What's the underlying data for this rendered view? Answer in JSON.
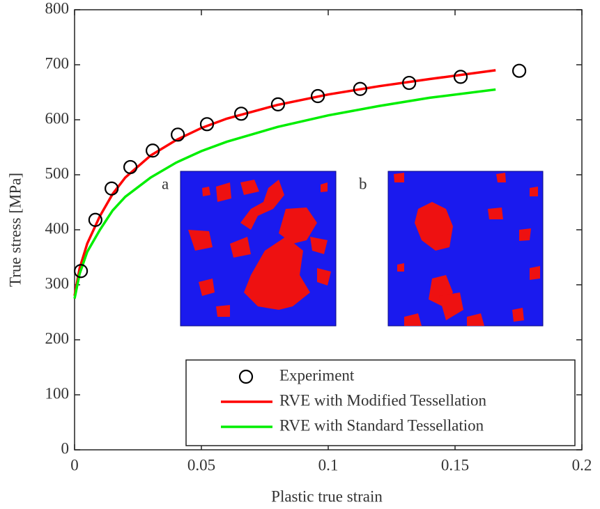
{
  "chart_data": {
    "type": "line",
    "xlabel": "Plastic true strain",
    "ylabel": "True stress [MPa]",
    "xlim": [
      0,
      0.2
    ],
    "xticks": [
      0,
      0.05,
      0.1,
      0.15,
      0.2
    ],
    "ylim": [
      0,
      800
    ],
    "yticks": [
      0,
      100,
      200,
      300,
      400,
      500,
      600,
      700,
      800
    ],
    "legend": "lower right",
    "series": [
      {
        "name": "Experiment",
        "type": "scatter",
        "color": "#000000",
        "x": [
          0.0025,
          0.0082,
          0.0146,
          0.022,
          0.0308,
          0.0407,
          0.0522,
          0.0657,
          0.0802,
          0.0959,
          0.1126,
          0.1319,
          0.1522,
          0.1753
        ],
        "values": [
          325,
          418,
          475,
          514,
          544,
          573,
          592,
          611,
          628,
          643,
          656,
          667,
          678,
          689
        ]
      },
      {
        "name": "RVE with Modified Tessellation",
        "type": "line",
        "color": "#ff0000",
        "x": [
          0,
          0.002,
          0.005,
          0.01,
          0.015,
          0.02,
          0.03,
          0.04,
          0.05,
          0.06,
          0.08,
          0.1,
          0.12,
          0.14,
          0.166
        ],
        "values": [
          280,
          330,
          375,
          425,
          465,
          495,
          535,
          563,
          585,
          602,
          627,
          646,
          661,
          674,
          690
        ]
      },
      {
        "name": "RVE with Standard Tessellation",
        "type": "line",
        "color": "#00ee00",
        "x": [
          0,
          0.002,
          0.005,
          0.01,
          0.015,
          0.02,
          0.03,
          0.04,
          0.05,
          0.06,
          0.08,
          0.1,
          0.12,
          0.14,
          0.166
        ],
        "values": [
          275,
          320,
          360,
          400,
          435,
          460,
          495,
          522,
          543,
          560,
          587,
          608,
          625,
          640,
          655
        ]
      }
    ],
    "insets": [
      {
        "label": "a"
      },
      {
        "label": "b"
      }
    ]
  }
}
